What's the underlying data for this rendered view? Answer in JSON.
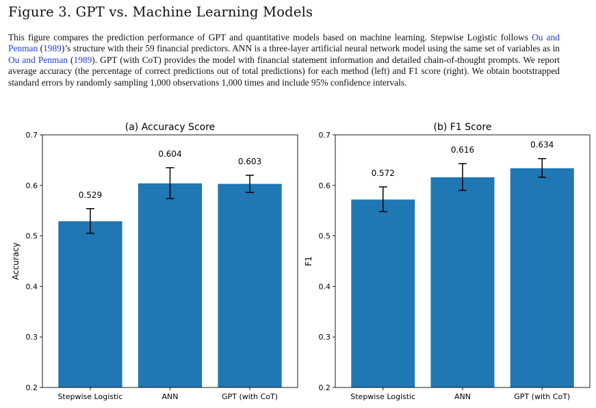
{
  "figure": {
    "title": "Figure 3. GPT vs. Machine Learning Models",
    "caption": {
      "p1": "This figure compares the prediction performance of GPT and quantitative models based on machine learning. Stepwise Logistic follows ",
      "c1": "Ou and Penman",
      "p2": " (",
      "c2": "1989",
      "p3": ")’s structure with their 59 financial predictors. ANN is a three-layer artificial neural network model using the same set of variables as in ",
      "c3": "Ou and Penman",
      "p4": " (",
      "c4": "1989",
      "p5": "). GPT (with CoT) provides the model with financial statement information and detailed chain-of-thought prompts. We report average accuracy (the percentage of correct predictions out of total predictions) for each method (left) and F1 score (right). We obtain bootstrapped standard errors by randomly sampling 1,000 observations 1,000 times and include 95% confidence intervals."
    }
  },
  "chart_data": [
    {
      "type": "bar",
      "title": "(a) Accuracy Score",
      "ylabel": "Accuracy",
      "xlabel": "",
      "categories": [
        "Stepwise Logistic",
        "ANN",
        "GPT (with CoT)"
      ],
      "values": [
        0.529,
        0.604,
        0.603
      ],
      "value_labels": [
        "0.529",
        "0.604",
        "0.603"
      ],
      "ci_lower": [
        0.505,
        0.574,
        0.586
      ],
      "ci_upper": [
        0.554,
        0.635,
        0.62
      ],
      "ylim": [
        0.2,
        0.7
      ],
      "yticks": [
        0.2,
        0.3,
        0.4,
        0.5,
        0.6,
        0.7
      ],
      "ytick_labels": [
        "0.2",
        "0.3",
        "0.4",
        "0.5",
        "0.6",
        "0.7"
      ],
      "grid": false,
      "bar_color": "#1f77b4"
    },
    {
      "type": "bar",
      "title": "(b) F1 Score",
      "ylabel": "F1",
      "xlabel": "",
      "categories": [
        "Stepwise Logistic",
        "ANN",
        "GPT (with CoT)"
      ],
      "values": [
        0.572,
        0.616,
        0.634
      ],
      "value_labels": [
        "0.572",
        "0.616",
        "0.634"
      ],
      "ci_lower": [
        0.548,
        0.59,
        0.616
      ],
      "ci_upper": [
        0.597,
        0.643,
        0.653
      ],
      "ylim": [
        0.2,
        0.7
      ],
      "yticks": [
        0.2,
        0.3,
        0.4,
        0.5,
        0.6,
        0.7
      ],
      "ytick_labels": [
        "0.2",
        "0.3",
        "0.4",
        "0.5",
        "0.6",
        "0.7"
      ],
      "grid": false,
      "bar_color": "#1f77b4"
    }
  ]
}
